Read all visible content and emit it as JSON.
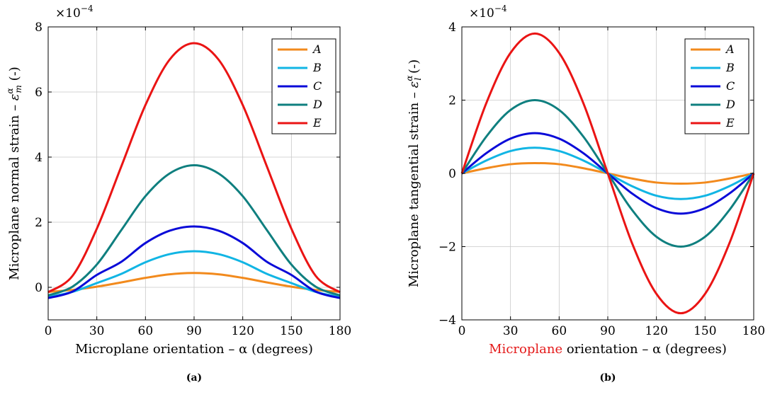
{
  "chart_data": [
    {
      "type": "line",
      "xlabel_main": "Microplane orientation – α (degrees)",
      "ylabel": "Microplane normal strain – εᵐ^α (-)",
      "ylabel_prefix": "Microplane normal strain – ",
      "ylabel_symbol": "ε",
      "ylabel_sub": "m",
      "ylabel_sup": "α",
      "ylabel_suffix": " (-)",
      "multiplier_base": "×10",
      "multiplier_exp": "−4",
      "caption": "(a)",
      "xlim": [
        0,
        180
      ],
      "ylim": [
        -1,
        8
      ],
      "xticks": [
        0,
        30,
        60,
        90,
        120,
        150,
        180
      ],
      "xtick_labels": [
        "0",
        "30",
        "60",
        "90",
        "120",
        "150",
        "180"
      ],
      "yticks": [
        0,
        2,
        4,
        6,
        8
      ],
      "ytick_labels": [
        "0",
        "2",
        "4",
        "6",
        "8"
      ],
      "grid": true,
      "legend_position": "top-right",
      "x": [
        0,
        15,
        30,
        45,
        60,
        75,
        90,
        105,
        120,
        135,
        150,
        165,
        180
      ],
      "series": [
        {
          "name": "A",
          "color": "#f28a1d",
          "values": [
            -0.14,
            -0.08,
            0.02,
            0.15,
            0.29,
            0.4,
            0.44,
            0.4,
            0.29,
            0.15,
            0.02,
            -0.08,
            -0.14
          ]
        },
        {
          "name": "B",
          "color": "#11b5e4",
          "values": [
            -0.3,
            -0.14,
            0.13,
            0.41,
            0.77,
            1.02,
            1.11,
            1.02,
            0.77,
            0.41,
            0.13,
            -0.14,
            -0.3
          ]
        },
        {
          "name": "C",
          "color": "#0a0ad8",
          "values": [
            -0.33,
            -0.13,
            0.38,
            0.78,
            1.36,
            1.74,
            1.87,
            1.74,
            1.36,
            0.78,
            0.38,
            -0.13,
            -0.33
          ]
        },
        {
          "name": "D",
          "color": "#0f7f7f",
          "values": [
            -0.25,
            0.02,
            0.7,
            1.75,
            2.8,
            3.5,
            3.75,
            3.5,
            2.8,
            1.75,
            0.7,
            0.02,
            -0.25
          ]
        },
        {
          "name": "E",
          "color": "#ea1414",
          "values": [
            -0.15,
            0.35,
            1.8,
            3.7,
            5.6,
            7.0,
            7.5,
            7.0,
            5.6,
            3.7,
            1.8,
            0.35,
            -0.15
          ]
        }
      ]
    },
    {
      "type": "line",
      "xlabel_highlight": "Microplane",
      "xlabel_rest": " orientation – α (degrees)",
      "xlabel_highlight_color": "#e41a1a",
      "ylabel": "Microplane tangential strain – εₗ^α (-)",
      "ylabel_prefix": "Microplane tangential strain – ",
      "ylabel_symbol": "ε",
      "ylabel_sub": "l",
      "ylabel_sup": "α",
      "ylabel_suffix": " (-)",
      "multiplier_base": "×10",
      "multiplier_exp": "−4",
      "caption": "(b)",
      "xlim": [
        0,
        180
      ],
      "ylim": [
        -4,
        4
      ],
      "xticks": [
        0,
        30,
        60,
        90,
        120,
        150,
        180
      ],
      "xtick_labels": [
        "0",
        "30",
        "60",
        "90",
        "120",
        "150",
        "180"
      ],
      "yticks": [
        -4,
        -2,
        0,
        2,
        4
      ],
      "ytick_labels": [
        "−4",
        "−2",
        "0",
        "2",
        "4"
      ],
      "grid": true,
      "legend_position": "top-right",
      "x": [
        0,
        15,
        30,
        45,
        60,
        75,
        90,
        105,
        120,
        135,
        150,
        165,
        180
      ],
      "series": [
        {
          "name": "A",
          "color": "#f28a1d",
          "values": [
            0,
            0.14,
            0.25,
            0.28,
            0.25,
            0.14,
            0,
            -0.14,
            -0.25,
            -0.28,
            -0.25,
            -0.14,
            0
          ]
        },
        {
          "name": "B",
          "color": "#11b5e4",
          "values": [
            0,
            0.35,
            0.61,
            0.7,
            0.61,
            0.35,
            0,
            -0.35,
            -0.61,
            -0.7,
            -0.61,
            -0.35,
            0
          ]
        },
        {
          "name": "C",
          "color": "#0a0ad8",
          "values": [
            0,
            0.55,
            0.95,
            1.1,
            0.95,
            0.55,
            0,
            -0.55,
            -0.95,
            -1.1,
            -0.95,
            -0.55,
            0
          ]
        },
        {
          "name": "D",
          "color": "#0f7f7f",
          "values": [
            0,
            1.0,
            1.73,
            2.0,
            1.73,
            1.0,
            0,
            -1.0,
            -1.73,
            -2.0,
            -1.73,
            -1.0,
            0
          ]
        },
        {
          "name": "E",
          "color": "#ea1414",
          "values": [
            0,
            1.91,
            3.29,
            3.82,
            3.29,
            1.91,
            0,
            -1.91,
            -3.29,
            -3.82,
            -3.29,
            -1.91,
            0
          ]
        }
      ]
    }
  ]
}
